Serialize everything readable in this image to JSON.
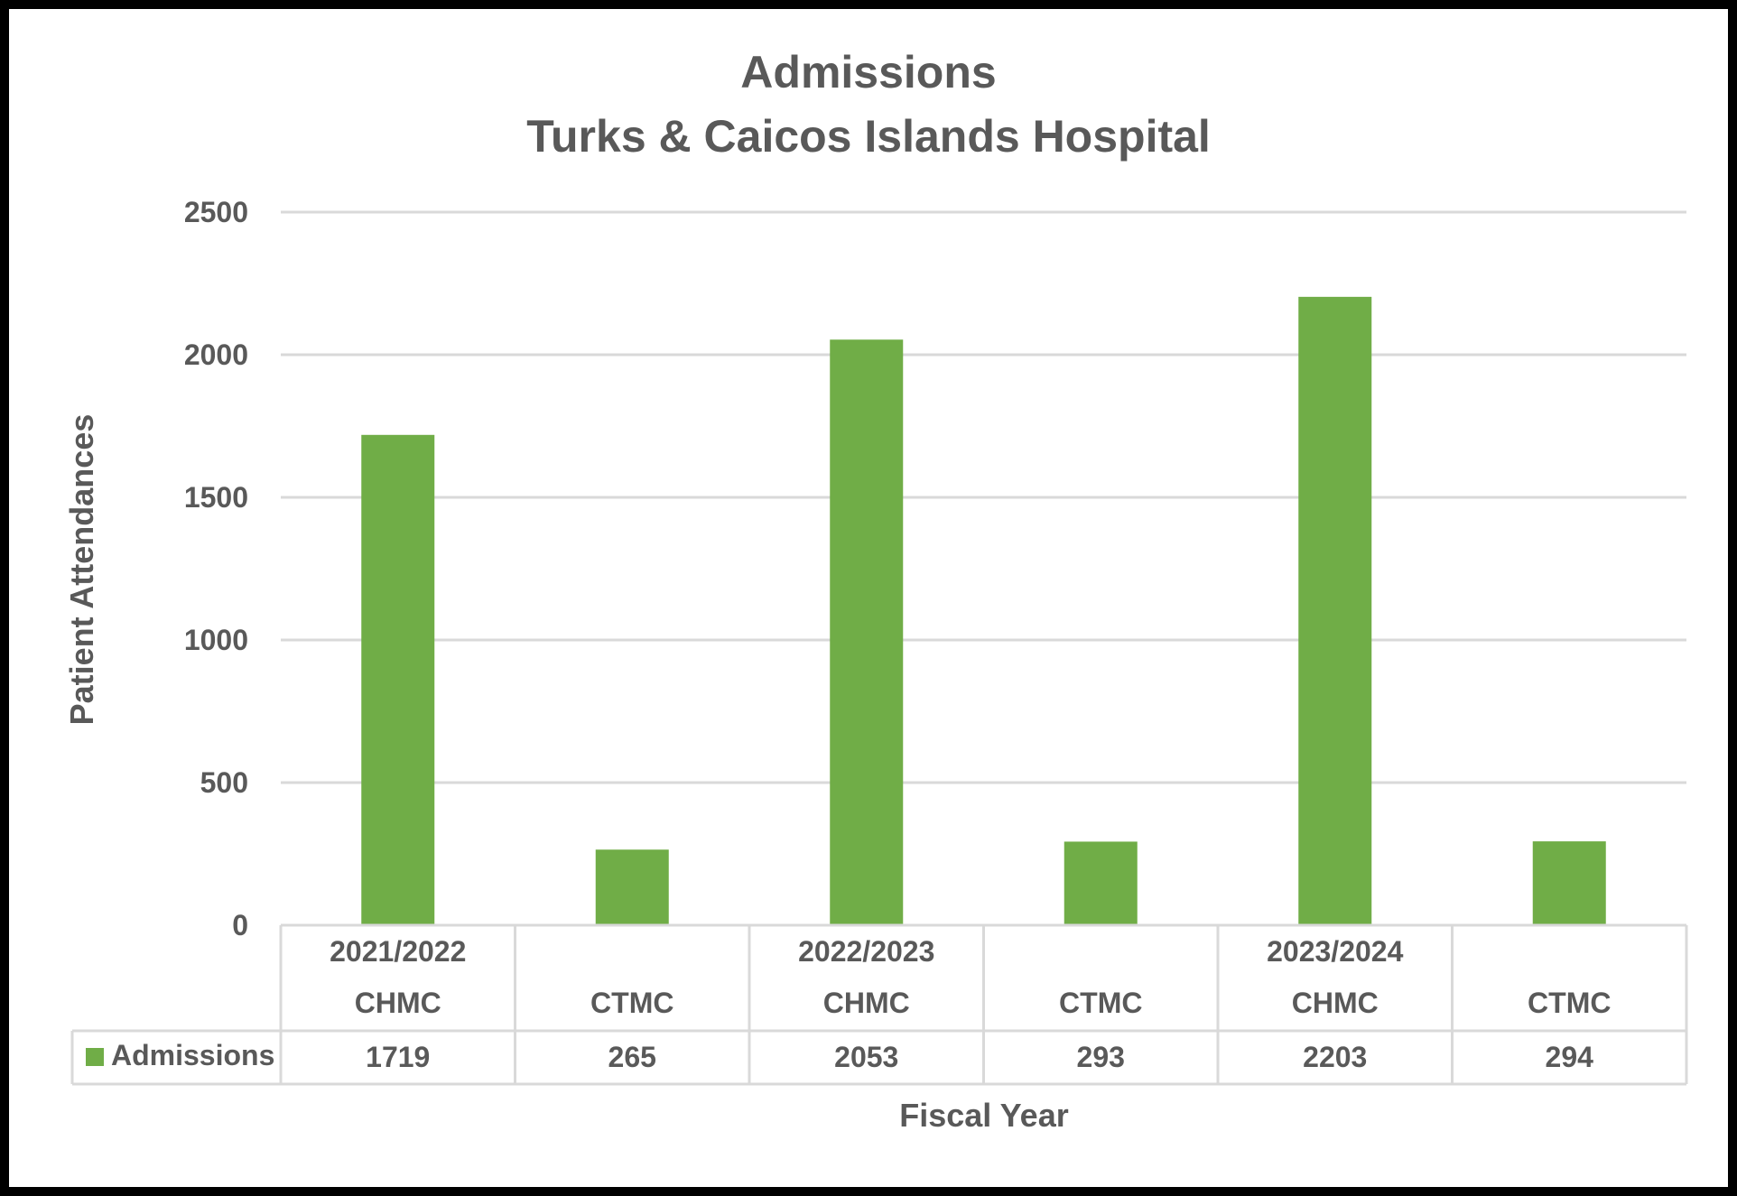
{
  "chart_data": {
    "type": "bar",
    "title": "Admissions",
    "subtitle": "Turks & Caicos Islands Hospital",
    "xlabel": "Fiscal Year",
    "ylabel": "Patient Attendances",
    "ylim": [
      0,
      2500
    ],
    "y_ticks": [
      0,
      500,
      1000,
      1500,
      2000,
      2500
    ],
    "grid": true,
    "legend_placement": "data table, left",
    "year_groups": [
      "2021/2022",
      "2022/2023",
      "2023/2024"
    ],
    "categories": [
      "CHMC",
      "CTMC",
      "CHMC",
      "CTMC",
      "CHMC",
      "CTMC"
    ],
    "series": [
      {
        "name": "Admissions",
        "color": "#70ad47",
        "values": [
          1719,
          265,
          2053,
          293,
          2203,
          294
        ]
      }
    ]
  }
}
